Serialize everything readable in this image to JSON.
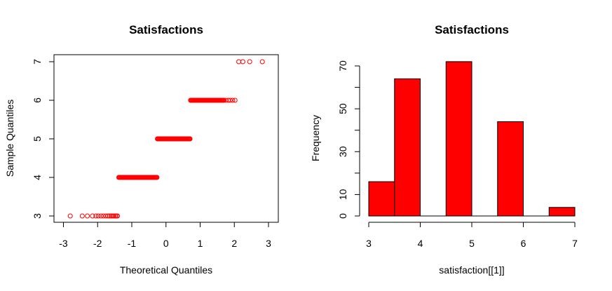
{
  "chart_data": [
    {
      "type": "scatter",
      "title": "Satisfactions",
      "xlabel": "Theoretical Quantiles",
      "ylabel": "Sample Quantiles",
      "xlim": [
        -3,
        3
      ],
      "ylim": [
        3,
        7
      ],
      "xticks": [
        "-3",
        "-2",
        "-1",
        "0",
        "1",
        "2",
        "3"
      ],
      "yticks": [
        "3",
        "4",
        "5",
        "6",
        "7"
      ],
      "point_color": "#ff0000",
      "groups": [
        {
          "y": 3,
          "x": [
            -2.8,
            -2.45,
            -2.3,
            -2.15,
            -2.05,
            -1.98,
            -1.9,
            -1.83,
            -1.76,
            -1.7,
            -1.65,
            -1.6,
            -1.56,
            -1.52,
            -1.48,
            -1.45,
            -1.42
          ]
        },
        {
          "y": 4,
          "x_from": -1.38,
          "x_to": -0.25
        },
        {
          "y": 5,
          "x_from": -0.25,
          "x_to": 0.72
        },
        {
          "y": 6,
          "x_from": 0.72,
          "x_to": 1.7,
          "extra_x": [
            1.75,
            1.82,
            1.88,
            1.95,
            2.02
          ]
        },
        {
          "y": 7,
          "x": [
            2.13,
            2.25,
            2.45,
            2.82
          ]
        }
      ]
    },
    {
      "type": "bar",
      "title": "Satisfactions",
      "xlabel": "satisfaction[[1]]",
      "ylabel": "Frequency",
      "bins": [
        {
          "from": 3.0,
          "to": 3.5,
          "count": 16
        },
        {
          "from": 3.5,
          "to": 4.0,
          "count": 64
        },
        {
          "from": 4.0,
          "to": 4.5,
          "count": 0
        },
        {
          "from": 4.5,
          "to": 5.0,
          "count": 72
        },
        {
          "from": 5.0,
          "to": 5.5,
          "count": 0
        },
        {
          "from": 5.5,
          "to": 6.0,
          "count": 44
        },
        {
          "from": 6.0,
          "to": 6.5,
          "count": 0
        },
        {
          "from": 6.5,
          "to": 7.0,
          "count": 4
        }
      ],
      "xlim": [
        3,
        7
      ],
      "ylim": [
        0,
        72
      ],
      "xticks": [
        "3",
        "4",
        "5",
        "6",
        "7"
      ],
      "yticks": [
        "0",
        "10",
        "30",
        "50",
        "70"
      ],
      "bar_color": "#ff0000"
    }
  ]
}
